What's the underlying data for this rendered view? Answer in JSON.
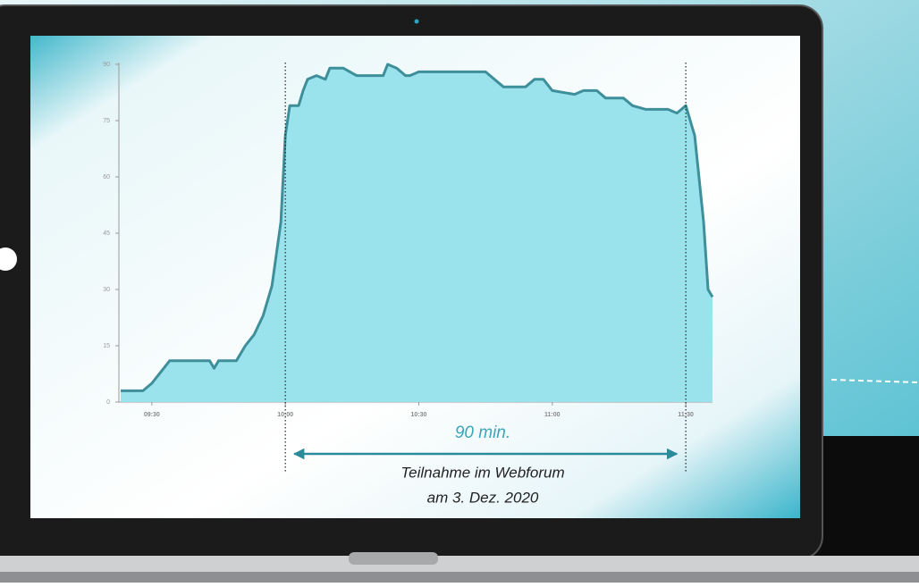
{
  "chart_data": {
    "type": "area",
    "x": [
      "09:23",
      "09:28",
      "09:30",
      "09:32",
      "09:34",
      "09:43",
      "09:44",
      "09:45",
      "09:49",
      "09:51",
      "09:53",
      "09:55",
      "09:57",
      "09:59",
      "10:00",
      "10:01",
      "10:03",
      "10:04",
      "10:05",
      "10:07",
      "10:09",
      "10:10",
      "10:13",
      "10:16",
      "10:18",
      "10:22",
      "10:23",
      "10:25",
      "10:27",
      "10:28",
      "10:30",
      "10:45",
      "10:49",
      "10:54",
      "10:56",
      "10:58",
      "11:00",
      "11:05",
      "11:07",
      "11:10",
      "11:12",
      "11:16",
      "11:18",
      "11:21",
      "11:26",
      "11:28",
      "11:30",
      "11:31",
      "11:32",
      "11:34",
      "11:35",
      "11:36"
    ],
    "values": [
      3,
      3,
      5,
      8,
      11,
      11,
      9,
      11,
      11,
      15,
      18,
      23,
      31,
      48,
      71,
      79,
      79,
      83,
      86,
      87,
      86,
      89,
      89,
      87,
      87,
      87,
      90,
      89,
      87,
      87,
      88,
      88,
      84,
      84,
      86,
      86,
      83,
      82,
      83,
      83,
      81,
      81,
      79,
      78,
      78,
      77,
      79,
      75,
      71,
      48,
      30,
      28
    ],
    "color": "#9be3ec",
    "line_color": "#3f8f9a",
    "xlim": [
      "09:23",
      "11:36"
    ],
    "xticks": [
      "09:30",
      "10:00",
      "10:30",
      "11:00",
      "11:30"
    ],
    "ylim": [
      0,
      90
    ],
    "yticks": [
      0,
      15,
      30,
      45,
      60,
      75,
      90
    ],
    "markers": [
      "10:00",
      "11:30"
    ],
    "annotations": {
      "duration": "90 min.",
      "caption_line1": "Teilnahme im Webforum",
      "caption_line2": "am 3. Dez. 2020"
    }
  }
}
